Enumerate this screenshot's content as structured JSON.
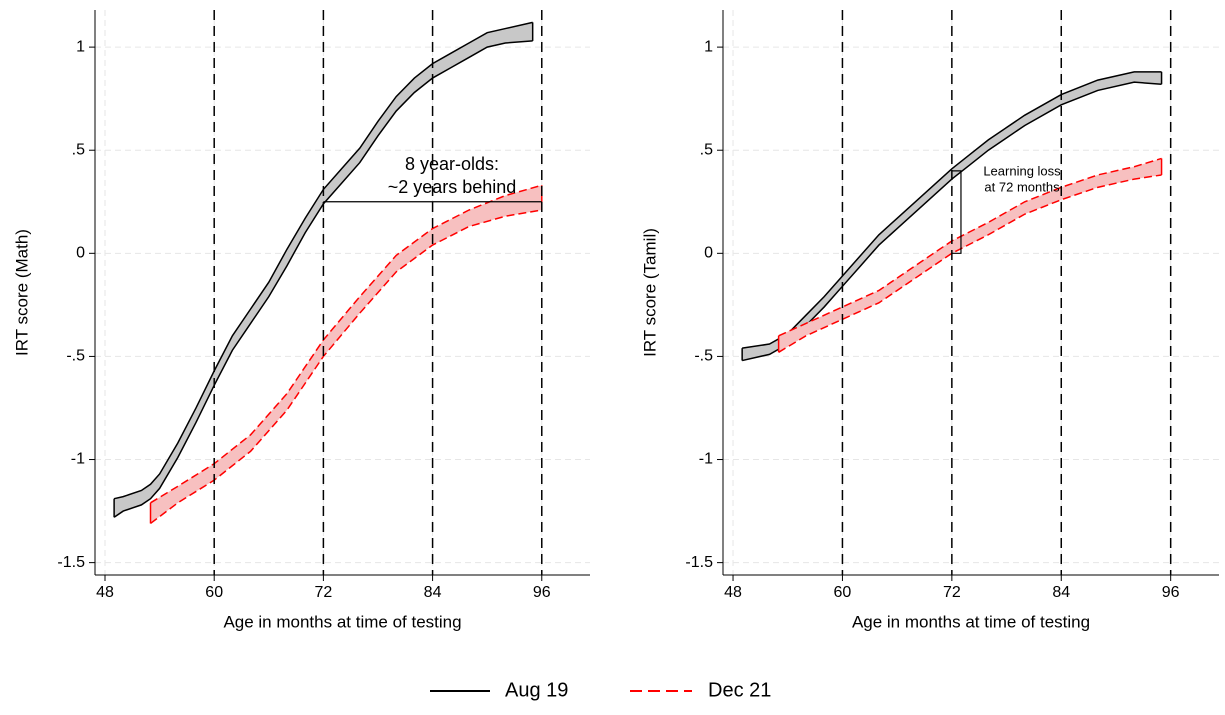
{
  "chart_data": [
    {
      "type": "line_band",
      "ylabel": "IRT score (Math)",
      "xlabel": "Age in months at time of testing",
      "xlim": [
        46.9,
        101.3
      ],
      "ylim": [
        -1.56,
        1.18
      ],
      "xticks": [
        48,
        60,
        72,
        84,
        96
      ],
      "yticks": [
        1,
        {
          "value": 0.5,
          "label": ".5"
        },
        0,
        {
          "value": -0.5,
          "label": "-.5"
        },
        -1,
        -1.5
      ],
      "grid": true,
      "xlines": [
        60,
        72,
        84,
        96
      ],
      "series": [
        {
          "name": "Aug 19",
          "color": "#000000",
          "band_color": "#c8c8c8",
          "dashed": false,
          "x": [
            49,
            50,
            52,
            53,
            54,
            56,
            58,
            60,
            62,
            64,
            66,
            68,
            70,
            72,
            74,
            76,
            78,
            80,
            82,
            84,
            86,
            88,
            90,
            92,
            95
          ],
          "lower": [
            -1.28,
            -1.25,
            -1.22,
            -1.19,
            -1.14,
            -0.99,
            -0.82,
            -0.64,
            -0.47,
            -0.34,
            -0.21,
            -0.06,
            0.1,
            0.24,
            0.34,
            0.44,
            0.57,
            0.69,
            0.78,
            0.85,
            0.9,
            0.95,
            1,
            1.02,
            1.03
          ],
          "upper": [
            -1.19,
            -1.18,
            -1.15,
            -1.12,
            -1.07,
            -0.92,
            -0.75,
            -0.57,
            -0.4,
            -0.27,
            -0.14,
            0.02,
            0.17,
            0.31,
            0.41,
            0.51,
            0.64,
            0.76,
            0.85,
            0.92,
            0.97,
            1.02,
            1.07,
            1.09,
            1.12
          ]
        },
        {
          "name": "Dec 21",
          "color": "#ff0000",
          "band_color": "#f7c0c0",
          "dashed": true,
          "x": [
            53,
            56,
            60,
            64,
            68,
            72,
            76,
            80,
            84,
            88,
            92,
            96
          ],
          "lower": [
            -1.31,
            -1.21,
            -1.1,
            -0.96,
            -0.76,
            -0.5,
            -0.29,
            -0.09,
            0.04,
            0.13,
            0.18,
            0.21
          ],
          "upper": [
            -1.21,
            -1.13,
            -1.02,
            -0.88,
            -0.68,
            -0.42,
            -0.21,
            -0.01,
            0.12,
            0.21,
            0.28,
            0.33
          ]
        }
      ],
      "annotation": {
        "text": [
          "8 year-olds:",
          "~2 years behind"
        ],
        "line": {
          "x": [
            72,
            96
          ],
          "y": [
            0.25,
            0.25
          ]
        }
      }
    },
    {
      "type": "line_band",
      "ylabel": "IRT score (Tamil)",
      "xlabel": "Age in months at time of testing",
      "xlim": [
        46.9,
        101.3
      ],
      "ylim": [
        -1.56,
        1.18
      ],
      "xticks": [
        48,
        60,
        72,
        84,
        96
      ],
      "yticks": [
        1,
        {
          "value": 0.5,
          "label": ".5"
        },
        0,
        {
          "value": -0.5,
          "label": "-.5"
        },
        -1,
        -1.5
      ],
      "grid": true,
      "xlines": [
        60,
        72,
        84,
        96
      ],
      "series": [
        {
          "name": "Aug 19",
          "color": "#000000",
          "band_color": "#c8c8c8",
          "dashed": false,
          "x": [
            49,
            52,
            54,
            56,
            58,
            60,
            62,
            64,
            66,
            68,
            70,
            72,
            74,
            76,
            78,
            80,
            84,
            88,
            92,
            95
          ],
          "lower": [
            -0.52,
            -0.49,
            -0.44,
            -0.35,
            -0.26,
            -0.16,
            -0.06,
            0.04,
            0.12,
            0.2,
            0.28,
            0.36,
            0.43,
            0.5,
            0.56,
            0.62,
            0.72,
            0.79,
            0.83,
            0.82
          ],
          "upper": [
            -0.46,
            -0.44,
            -0.39,
            -0.3,
            -0.21,
            -0.11,
            -0.01,
            0.09,
            0.17,
            0.25,
            0.33,
            0.41,
            0.48,
            0.55,
            0.61,
            0.67,
            0.77,
            0.84,
            0.88,
            0.88
          ]
        },
        {
          "name": "Dec 21",
          "color": "#ff0000",
          "band_color": "#f7c0c0",
          "dashed": true,
          "x": [
            53,
            56,
            60,
            64,
            68,
            72,
            76,
            80,
            84,
            88,
            92,
            95
          ],
          "lower": [
            -0.48,
            -0.4,
            -0.32,
            -0.24,
            -0.12,
            0,
            0.09,
            0.19,
            0.26,
            0.32,
            0.36,
            0.38
          ],
          "upper": [
            -0.4,
            -0.34,
            -0.26,
            -0.18,
            -0.06,
            0.06,
            0.15,
            0.25,
            0.32,
            0.38,
            0.42,
            0.46
          ]
        }
      ],
      "annotation": {
        "text": [
          "Learning loss",
          "at 72 months"
        ],
        "line": {
          "x": [
            72,
            73,
            73,
            72
          ],
          "y": [
            0.4,
            0.4,
            0,
            0
          ]
        }
      }
    }
  ]
}
